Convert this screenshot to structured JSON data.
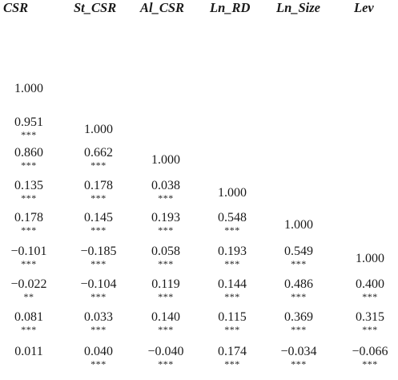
{
  "headers": [
    "CSR",
    "St_CSR",
    "Al_CSR",
    "Ln_RD",
    "Ln_Size",
    "Lev"
  ],
  "rows": [
    [
      {
        "v": "1.000",
        "s": ""
      }
    ],
    [
      {
        "v": "0.951",
        "s": "***"
      },
      {
        "v": "1.000",
        "s": ""
      }
    ],
    [
      {
        "v": "0.860",
        "s": "***"
      },
      {
        "v": "0.662",
        "s": "***"
      },
      {
        "v": "1.000",
        "s": ""
      }
    ],
    [
      {
        "v": "0.135",
        "s": "***"
      },
      {
        "v": "0.178",
        "s": "***"
      },
      {
        "v": "0.038",
        "s": "***"
      },
      {
        "v": "1.000",
        "s": ""
      }
    ],
    [
      {
        "v": "0.178",
        "s": "***"
      },
      {
        "v": "0.145",
        "s": "***"
      },
      {
        "v": "0.193",
        "s": "***"
      },
      {
        "v": "0.548",
        "s": "***"
      },
      {
        "v": "1.000",
        "s": ""
      }
    ],
    [
      {
        "v": "−0.101",
        "s": "***"
      },
      {
        "v": "−0.185",
        "s": "***"
      },
      {
        "v": "0.058",
        "s": "***"
      },
      {
        "v": "0.193",
        "s": "***"
      },
      {
        "v": "0.549",
        "s": "***"
      },
      {
        "v": "1.000",
        "s": ""
      }
    ],
    [
      {
        "v": "−0.022",
        "s": "**"
      },
      {
        "v": "−0.104",
        "s": "***"
      },
      {
        "v": "0.119",
        "s": "***"
      },
      {
        "v": "0.144",
        "s": "***"
      },
      {
        "v": "0.486",
        "s": "***"
      },
      {
        "v": "0.400",
        "s": "***"
      }
    ],
    [
      {
        "v": "0.081",
        "s": "***"
      },
      {
        "v": "0.033",
        "s": "***"
      },
      {
        "v": "0.140",
        "s": "***"
      },
      {
        "v": "0.115",
        "s": "***"
      },
      {
        "v": "0.369",
        "s": "***"
      },
      {
        "v": "0.315",
        "s": "***"
      }
    ],
    [
      {
        "v": "0.011",
        "s": ""
      },
      {
        "v": "0.040",
        "s": "***"
      },
      {
        "v": "−0.040",
        "s": "***"
      },
      {
        "v": "0.174",
        "s": "***"
      },
      {
        "v": "−0.034",
        "s": "***"
      },
      {
        "v": "−0.066",
        "s": "***"
      }
    ]
  ]
}
